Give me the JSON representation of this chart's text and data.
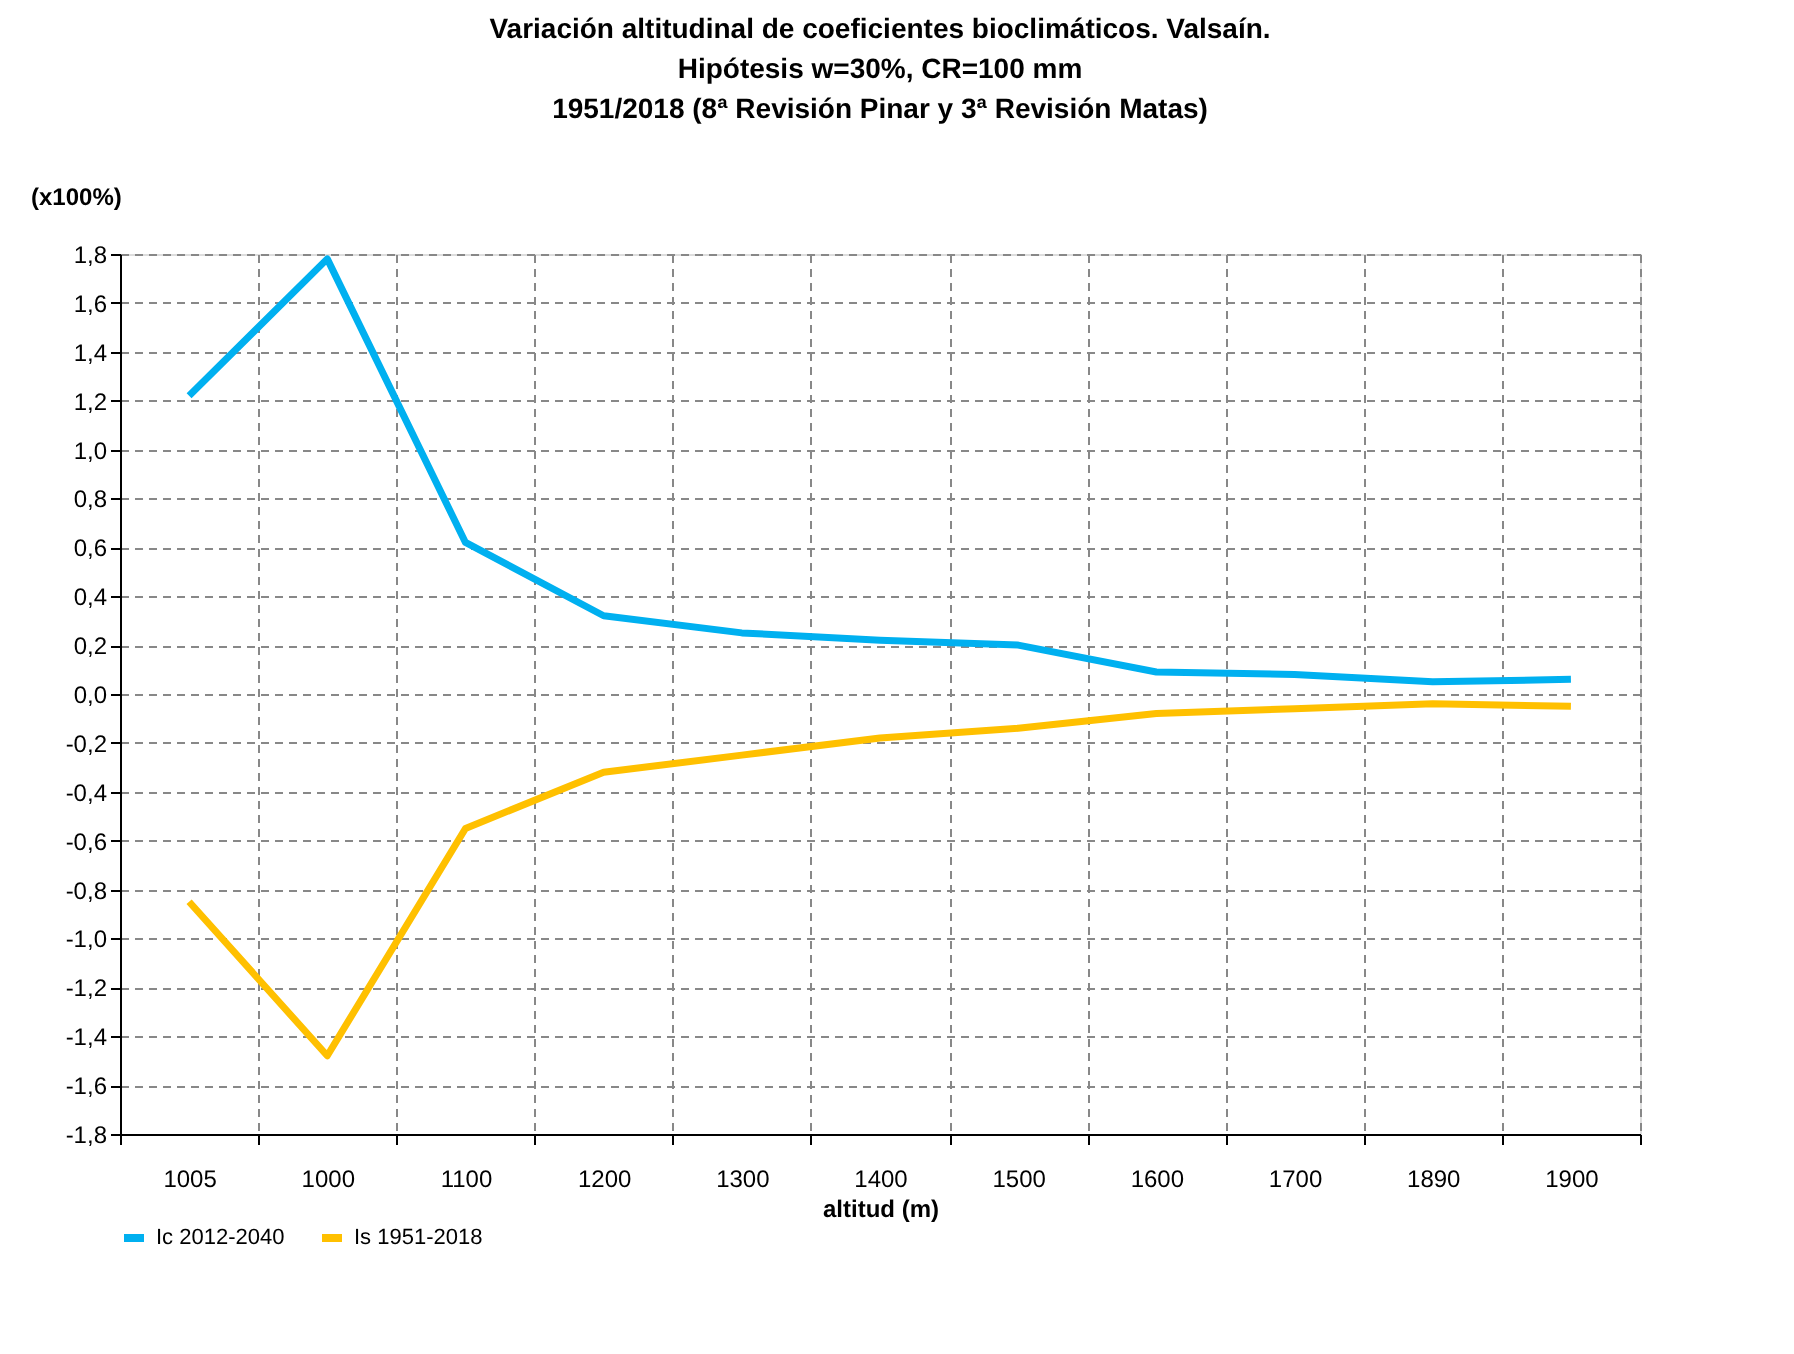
{
  "chart_data": {
    "type": "line",
    "title": "Variación altitudinal de coeficientes bioclimáticos.  Valsaín.\nHipótesis w=30%, CR=100 mm\n1951/2018 (8ª Revisión Pinar y 3ª Revisión Matas)",
    "xlabel": "altitud (m)",
    "ylabel": "(x100%)",
    "categories": [
      "1005",
      "1000",
      "1100",
      "1200",
      "1300",
      "1400",
      "1500",
      "1600",
      "1700",
      "1890",
      "1900"
    ],
    "series": [
      {
        "name": "Ic 2012-2040",
        "color": "#00b0f0",
        "values": [
          1.22,
          1.78,
          0.62,
          0.32,
          0.25,
          0.22,
          0.2,
          0.09,
          0.08,
          0.05,
          0.06
        ]
      },
      {
        "name": "Is 1951-2018",
        "color": "#ffc000",
        "values": [
          -0.85,
          -1.48,
          -0.55,
          -0.32,
          -0.25,
          -0.18,
          -0.14,
          -0.08,
          -0.06,
          -0.04,
          -0.05
        ]
      }
    ],
    "ylim": [
      -1.8,
      1.8
    ],
    "yticks": [
      {
        "value": -1.8,
        "label": "-1,8"
      },
      {
        "value": -1.6,
        "label": "-1,6"
      },
      {
        "value": -1.4,
        "label": "-1,4"
      },
      {
        "value": -1.2,
        "label": "-1,2"
      },
      {
        "value": -1.0,
        "label": "-1,0"
      },
      {
        "value": -0.8,
        "label": "-0,8"
      },
      {
        "value": -0.6,
        "label": "-0,6"
      },
      {
        "value": -0.4,
        "label": "-0,4"
      },
      {
        "value": -0.2,
        "label": "-0,2"
      },
      {
        "value": 0.0,
        "label": "0,0"
      },
      {
        "value": 0.2,
        "label": "0,2"
      },
      {
        "value": 0.4,
        "label": "0,4"
      },
      {
        "value": 0.6,
        "label": "0,6"
      },
      {
        "value": 0.8,
        "label": "0,8"
      },
      {
        "value": 1.0,
        "label": "1,0"
      },
      {
        "value": 1.2,
        "label": "1,2"
      },
      {
        "value": 1.4,
        "label": "1,4"
      },
      {
        "value": 1.6,
        "label": "1,6"
      },
      {
        "value": 1.8,
        "label": "1,8"
      }
    ],
    "grid": true,
    "legend": "bottom",
    "marker": "none",
    "line_style": "solid"
  }
}
